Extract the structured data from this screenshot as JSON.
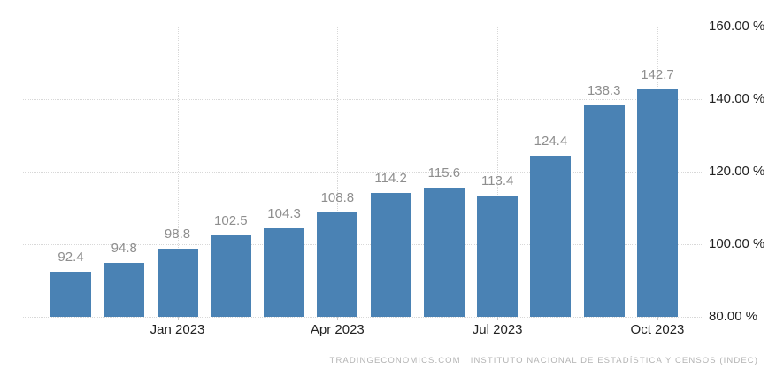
{
  "chart_data": {
    "type": "bar",
    "title": "",
    "xlabel": "",
    "ylabel": "",
    "values": [
      92.4,
      94.8,
      98.8,
      102.5,
      104.3,
      108.8,
      114.2,
      115.6,
      113.4,
      124.4,
      138.3,
      142.7
    ],
    "x_ticks": [
      {
        "bar_index": 2,
        "label": "Jan 2023"
      },
      {
        "bar_index": 5,
        "label": "Apr 2023"
      },
      {
        "bar_index": 8,
        "label": "Jul 2023"
      },
      {
        "bar_index": 11,
        "label": "Oct 2023"
      }
    ],
    "y_ticks": [
      {
        "value": 160,
        "label": "160.00 %"
      },
      {
        "value": 140,
        "label": "140.00 %"
      },
      {
        "value": 120,
        "label": "120.00 %"
      },
      {
        "value": 100,
        "label": "100.00 %"
      },
      {
        "value": 80,
        "label": "80.00 %"
      }
    ],
    "ylim": [
      80,
      160
    ],
    "grid": true,
    "legend": "none",
    "bar_color": "#4a82b4",
    "value_label_color": "#8e8e8e",
    "axis_label_color": "#222222",
    "gridline_color": "#d8d8d8",
    "attribution": "TRADINGECONOMICS.COM | INSTITUTO NACIONAL DE ESTADÍSTICA Y CENSOS (INDEC)"
  }
}
